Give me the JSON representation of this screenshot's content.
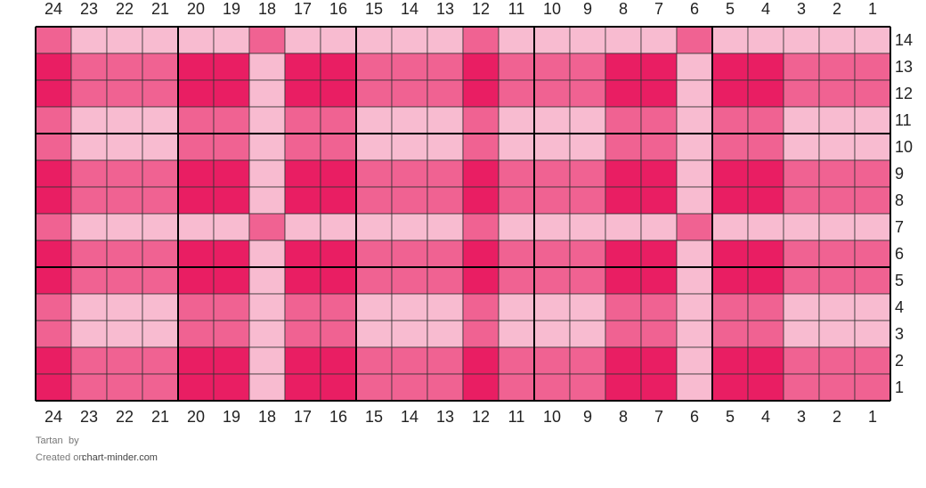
{
  "grid": {
    "palette": {
      "D": "#e91e63",
      "M": "#f06292",
      "L": "#f8bbd0"
    },
    "columns": [
      24,
      23,
      22,
      21,
      20,
      19,
      18,
      17,
      16,
      15,
      14,
      13,
      12,
      11,
      10,
      9,
      8,
      7,
      6,
      5,
      4,
      3,
      2,
      1
    ],
    "rows": [
      {
        "label": 14,
        "cells": [
          "M",
          "L",
          "L",
          "L",
          "L",
          "L",
          "M",
          "L",
          "L",
          "L",
          "L",
          "L",
          "M",
          "L",
          "L",
          "L",
          "L",
          "L",
          "M",
          "L",
          "L",
          "L",
          "L",
          "L"
        ]
      },
      {
        "label": 13,
        "cells": [
          "D",
          "M",
          "M",
          "M",
          "D",
          "D",
          "L",
          "D",
          "D",
          "M",
          "M",
          "M",
          "D",
          "M",
          "M",
          "M",
          "D",
          "D",
          "L",
          "D",
          "D",
          "M",
          "M",
          "M"
        ]
      },
      {
        "label": 12,
        "cells": [
          "D",
          "M",
          "M",
          "M",
          "D",
          "D",
          "L",
          "D",
          "D",
          "M",
          "M",
          "M",
          "D",
          "M",
          "M",
          "M",
          "D",
          "D",
          "L",
          "D",
          "D",
          "M",
          "M",
          "M"
        ]
      },
      {
        "label": 11,
        "cells": [
          "M",
          "L",
          "L",
          "L",
          "M",
          "M",
          "L",
          "M",
          "M",
          "L",
          "L",
          "L",
          "M",
          "L",
          "L",
          "L",
          "M",
          "M",
          "L",
          "M",
          "M",
          "L",
          "L",
          "L"
        ]
      },
      {
        "label": 10,
        "cells": [
          "M",
          "L",
          "L",
          "L",
          "M",
          "M",
          "L",
          "M",
          "M",
          "L",
          "L",
          "L",
          "M",
          "L",
          "L",
          "L",
          "M",
          "M",
          "L",
          "M",
          "M",
          "L",
          "L",
          "L"
        ]
      },
      {
        "label": 9,
        "cells": [
          "D",
          "M",
          "M",
          "M",
          "D",
          "D",
          "L",
          "D",
          "D",
          "M",
          "M",
          "M",
          "D",
          "M",
          "M",
          "M",
          "D",
          "D",
          "L",
          "D",
          "D",
          "M",
          "M",
          "M"
        ]
      },
      {
        "label": 8,
        "cells": [
          "D",
          "M",
          "M",
          "M",
          "D",
          "D",
          "L",
          "D",
          "D",
          "M",
          "M",
          "M",
          "D",
          "M",
          "M",
          "M",
          "D",
          "D",
          "L",
          "D",
          "D",
          "M",
          "M",
          "M"
        ]
      },
      {
        "label": 7,
        "cells": [
          "M",
          "L",
          "L",
          "L",
          "L",
          "L",
          "M",
          "L",
          "L",
          "L",
          "L",
          "L",
          "M",
          "L",
          "L",
          "L",
          "L",
          "L",
          "M",
          "L",
          "L",
          "L",
          "L",
          "L"
        ]
      },
      {
        "label": 6,
        "cells": [
          "D",
          "M",
          "M",
          "M",
          "D",
          "D",
          "L",
          "D",
          "D",
          "M",
          "M",
          "M",
          "D",
          "M",
          "M",
          "M",
          "D",
          "D",
          "L",
          "D",
          "D",
          "M",
          "M",
          "M"
        ]
      },
      {
        "label": 5,
        "cells": [
          "D",
          "M",
          "M",
          "M",
          "D",
          "D",
          "L",
          "D",
          "D",
          "M",
          "M",
          "M",
          "D",
          "M",
          "M",
          "M",
          "D",
          "D",
          "L",
          "D",
          "D",
          "M",
          "M",
          "M"
        ]
      },
      {
        "label": 4,
        "cells": [
          "M",
          "L",
          "L",
          "L",
          "M",
          "M",
          "L",
          "M",
          "M",
          "L",
          "L",
          "L",
          "M",
          "L",
          "L",
          "L",
          "M",
          "M",
          "L",
          "M",
          "M",
          "L",
          "L",
          "L"
        ]
      },
      {
        "label": 3,
        "cells": [
          "M",
          "L",
          "L",
          "L",
          "M",
          "M",
          "L",
          "M",
          "M",
          "L",
          "L",
          "L",
          "M",
          "L",
          "L",
          "L",
          "M",
          "M",
          "L",
          "M",
          "M",
          "L",
          "L",
          "L"
        ]
      },
      {
        "label": 2,
        "cells": [
          "D",
          "M",
          "M",
          "M",
          "D",
          "D",
          "L",
          "D",
          "D",
          "M",
          "M",
          "M",
          "D",
          "M",
          "M",
          "M",
          "D",
          "D",
          "L",
          "D",
          "D",
          "M",
          "M",
          "M"
        ]
      },
      {
        "label": 1,
        "cells": [
          "D",
          "M",
          "M",
          "M",
          "D",
          "D",
          "L",
          "D",
          "D",
          "M",
          "M",
          "M",
          "D",
          "M",
          "M",
          "M",
          "D",
          "D",
          "L",
          "D",
          "D",
          "M",
          "M",
          "M"
        ]
      }
    ]
  },
  "footer": {
    "title": "Tartan",
    "by": "by",
    "created": "Created on",
    "site": "chart-minder.com"
  }
}
